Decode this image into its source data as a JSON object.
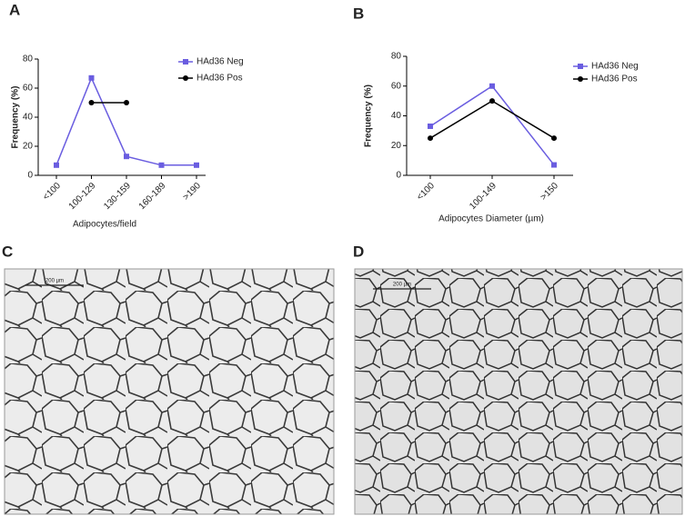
{
  "panels": [
    "A",
    "B",
    "C",
    "D"
  ],
  "scale_bars": [
    "200 µm",
    "200 µm"
  ],
  "chart_data": [
    {
      "type": "line",
      "ylabel": "Frequency (%)",
      "xlabel": "Adipocytes/field",
      "categories": [
        "<100",
        "100-129",
        "130-159",
        "160-189",
        ">190"
      ],
      "series": [
        {
          "name": "HAd36 Neg",
          "color": "#6a5de0",
          "marker": "square",
          "values": [
            7,
            67,
            13,
            7,
            7
          ]
        },
        {
          "name": "HAd36 Pos",
          "color": "#000000",
          "marker": "circle",
          "values": [
            null,
            50,
            50,
            null,
            null
          ]
        }
      ],
      "ylim": [
        0,
        80
      ],
      "yticks": [
        0,
        20,
        40,
        60,
        80
      ],
      "legend": "top-right"
    },
    {
      "type": "line",
      "ylabel": "Frequency (%)",
      "xlabel": "Adipocytes Diameter (µm)",
      "categories": [
        "<100",
        "100-149",
        ">150"
      ],
      "series": [
        {
          "name": "HAd36 Neg",
          "color": "#6a5de0",
          "marker": "square",
          "values": [
            33,
            60,
            7
          ]
        },
        {
          "name": "HAd36 Pos",
          "color": "#000000",
          "marker": "circle",
          "values": [
            25,
            50,
            25
          ]
        }
      ],
      "ylim": [
        0,
        80
      ],
      "yticks": [
        0,
        20,
        40,
        60,
        80
      ],
      "legend": "top-right"
    }
  ]
}
